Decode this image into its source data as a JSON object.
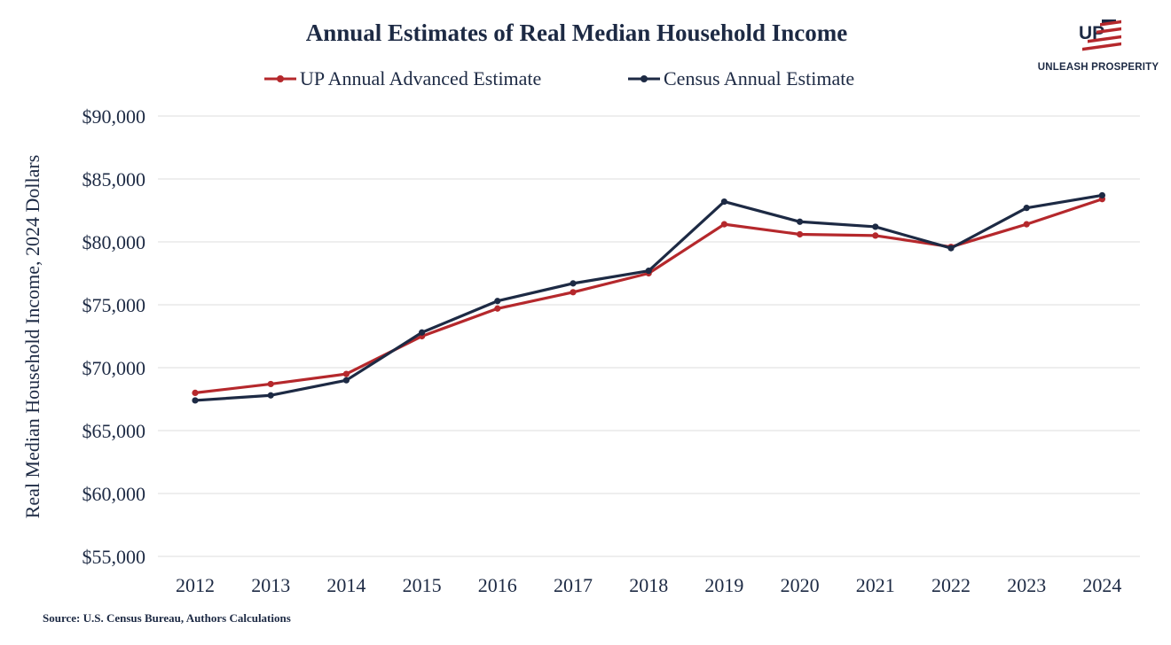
{
  "chart_data": {
    "type": "line",
    "title": "Annual Estimates of Real Median Household Income",
    "ylabel": "Real Median Household Income, 2024 Dollars",
    "xlabel": "",
    "x": [
      "2012",
      "2013",
      "2014",
      "2015",
      "2016",
      "2017",
      "2018",
      "2019",
      "2020",
      "2021",
      "2022",
      "2023",
      "2024"
    ],
    "ylim": [
      55000,
      90000
    ],
    "yticks": [
      55000,
      60000,
      65000,
      70000,
      75000,
      80000,
      85000,
      90000
    ],
    "ytick_labels": [
      "$55,000",
      "$60,000",
      "$65,000",
      "$70,000",
      "$75,000",
      "$80,000",
      "$85,000",
      "$90,000"
    ],
    "grid": true,
    "legend_position": "top-center",
    "series": [
      {
        "name": "UP Annual Advanced Estimate",
        "color": "#b5282c",
        "values": [
          68000,
          68700,
          69500,
          72500,
          74700,
          76000,
          77500,
          81400,
          80600,
          80500,
          79600,
          81400,
          83400
        ]
      },
      {
        "name": "Census Annual Estimate",
        "color": "#1d2a44",
        "values": [
          67400,
          67800,
          69000,
          72800,
          75300,
          76700,
          77700,
          83200,
          81600,
          81200,
          79500,
          82700,
          83700
        ]
      }
    ]
  },
  "logo": {
    "mark": "UP",
    "text": "UNLEASH PROSPERITY",
    "colors": {
      "navy": "#1d2a44",
      "red": "#b5282c"
    }
  },
  "source": "Source: U.S. Census Bureau, Authors Calculations"
}
